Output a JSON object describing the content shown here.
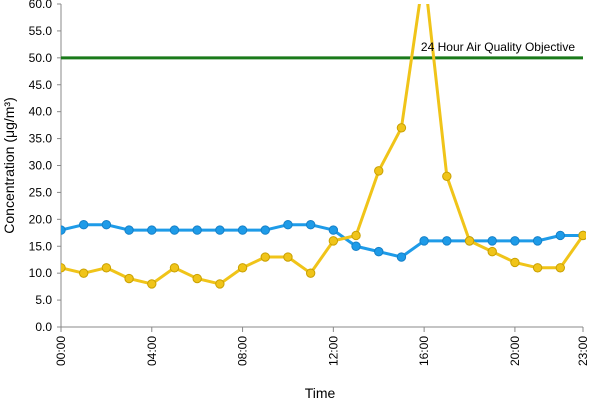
{
  "chart_data": {
    "type": "line",
    "xlabel": "Time",
    "ylabel": "Concentration (μg/m³)",
    "ylim": [
      0,
      60
    ],
    "yticks": [
      0,
      5,
      10,
      15,
      20,
      25,
      30,
      35,
      40,
      45,
      50,
      55,
      60
    ],
    "xlim": [
      0,
      23
    ],
    "xtick_values": [
      0,
      4,
      8,
      12,
      16,
      20,
      23
    ],
    "xtick_labels": [
      "00:00",
      "04:00",
      "08:00",
      "12:00",
      "16:00",
      "20:00",
      "23:00"
    ],
    "grid": false,
    "legend": "none",
    "x": [
      0,
      1,
      2,
      3,
      4,
      5,
      6,
      7,
      8,
      9,
      10,
      11,
      12,
      13,
      14,
      15,
      16,
      17,
      18,
      19,
      20,
      21,
      22,
      23
    ],
    "series": [
      {
        "color": "#1e9be8",
        "values": [
          18,
          19,
          19,
          18,
          18,
          18,
          18,
          18,
          18,
          18,
          19,
          19,
          18,
          15,
          14,
          13,
          16,
          16,
          16,
          16,
          16,
          16,
          17,
          17
        ]
      },
      {
        "color": "#f0c419",
        "values": [
          11,
          10,
          11,
          9,
          8,
          11,
          9,
          8,
          11,
          13,
          13,
          10,
          16,
          17,
          29,
          37,
          66,
          28,
          16,
          14,
          12,
          11,
          11,
          17
        ]
      }
    ],
    "reference_line": {
      "value": 50,
      "label": "24 Hour Air Quality Objective",
      "color": "#1a7a1a"
    }
  }
}
